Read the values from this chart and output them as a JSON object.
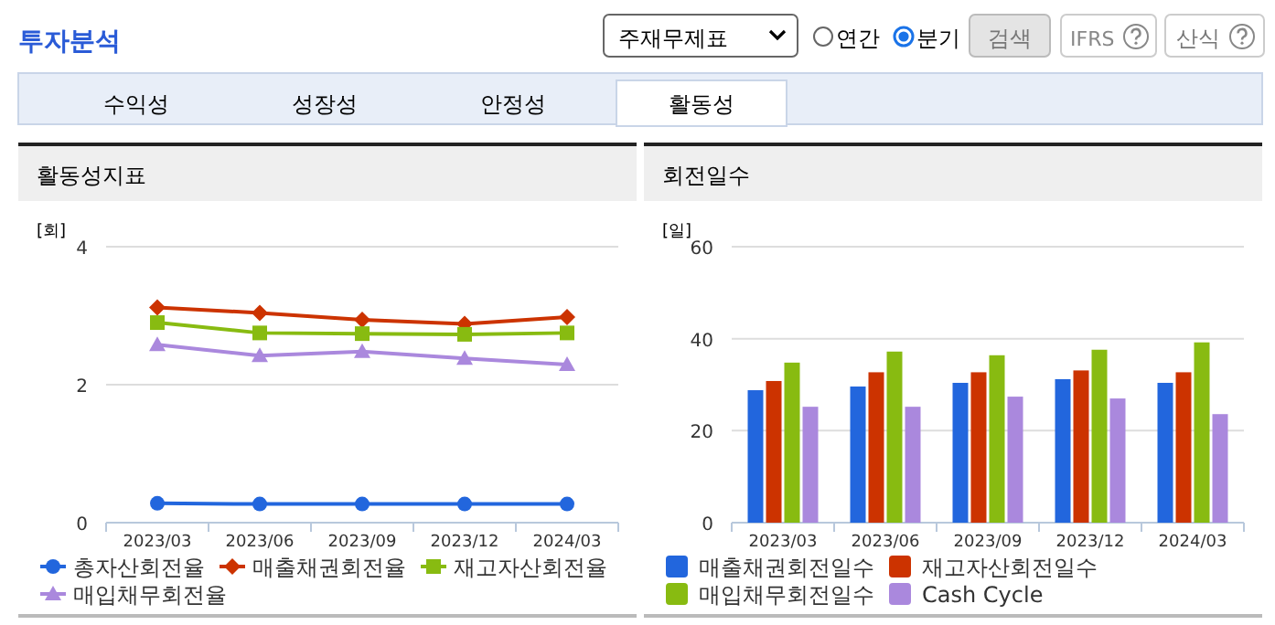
{
  "chart_data": [
    {
      "type": "other",
      "title": "투자분석",
      "annotations": [
        "주재무제표",
        "연간",
        "분기",
        "검색",
        "IFRS",
        "산식",
        "수익성",
        "성장성",
        "안정성",
        "활동성"
      ]
    },
    {
      "type": "line",
      "title": "활동성지표",
      "ylabel": "[회]",
      "categories": [
        "2023/03",
        "2023/06",
        "2023/09",
        "2023/12",
        "2024/03"
      ],
      "ylim": [
        0,
        4
      ],
      "yticks": [
        0,
        2,
        4
      ],
      "grid": "y",
      "legend": "bottom",
      "series": [
        {
          "name": "총자산회전율",
          "color": "#2266dd",
          "marker": "circle",
          "values": [
            0.28,
            0.27,
            0.27,
            0.27,
            0.27
          ]
        },
        {
          "name": "매출채권회전율",
          "color": "#cc3300",
          "marker": "diamond",
          "values": [
            3.12,
            3.04,
            2.94,
            2.88,
            2.98
          ]
        },
        {
          "name": "재고자산회전율",
          "color": "#88bb11",
          "marker": "square",
          "values": [
            2.9,
            2.75,
            2.74,
            2.73,
            2.75
          ]
        },
        {
          "name": "매입채무회전율",
          "color": "#aa88dd",
          "marker": "triangle",
          "values": [
            2.58,
            2.42,
            2.48,
            2.38,
            2.29
          ]
        }
      ]
    },
    {
      "type": "bar",
      "title": "회전일수",
      "ylabel": "[일]",
      "categories": [
        "2023/03",
        "2023/06",
        "2023/09",
        "2023/12",
        "2024/03"
      ],
      "ylim": [
        0,
        60
      ],
      "yticks": [
        0,
        20,
        40,
        60
      ],
      "grid": "y",
      "legend": "bottom",
      "series": [
        {
          "name": "매출채권회전일수",
          "color": "#2266dd",
          "values": [
            28.8,
            29.6,
            30.4,
            31.2,
            30.4
          ]
        },
        {
          "name": "재고자산회전일수",
          "color": "#cc3300",
          "values": [
            30.8,
            32.7,
            32.7,
            33.1,
            32.7
          ]
        },
        {
          "name": "매입채무회전일수",
          "color": "#88bb11",
          "values": [
            34.8,
            37.2,
            36.4,
            37.6,
            39.2
          ]
        },
        {
          "name": "Cash Cycle",
          "color": "#aa88dd",
          "values": [
            25.2,
            25.2,
            27.4,
            27.0,
            23.6
          ]
        }
      ]
    }
  ]
}
